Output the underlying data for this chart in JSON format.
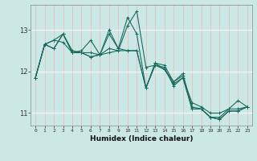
{
  "title": "",
  "xlabel": "Humidex (Indice chaleur)",
  "ylabel": "",
  "xlim": [
    -0.5,
    23.5
  ],
  "ylim": [
    10.7,
    13.6
  ],
  "yticks": [
    11,
    12,
    13
  ],
  "xticks": [
    0,
    1,
    2,
    3,
    4,
    5,
    6,
    7,
    8,
    9,
    10,
    11,
    12,
    13,
    14,
    15,
    16,
    17,
    18,
    19,
    20,
    21,
    22,
    23
  ],
  "bg_color": "#cce8e4",
  "line_color": "#1a6b5e",
  "grid_color_v": "#e8b8b8",
  "grid_color_h": "#ffffff",
  "lines": [
    [
      11.85,
      12.65,
      12.75,
      12.9,
      12.5,
      12.45,
      12.45,
      12.4,
      12.9,
      12.55,
      13.3,
      12.9,
      11.6,
      12.2,
      12.15,
      11.75,
      11.9,
      11.1,
      11.1,
      10.9,
      10.9,
      11.1,
      11.1,
      11.15
    ],
    [
      11.85,
      12.65,
      12.75,
      12.7,
      12.45,
      12.45,
      12.35,
      12.4,
      12.55,
      12.5,
      13.1,
      13.45,
      12.1,
      12.15,
      12.1,
      11.65,
      11.85,
      11.25,
      11.15,
      11.0,
      11.0,
      11.1,
      11.3,
      11.15
    ],
    [
      11.85,
      12.65,
      12.55,
      12.9,
      12.45,
      12.5,
      12.75,
      12.4,
      13.0,
      12.55,
      12.5,
      12.5,
      11.6,
      12.2,
      12.05,
      11.75,
      11.95,
      11.15,
      11.1,
      10.9,
      10.85,
      11.05,
      11.05,
      11.15
    ],
    [
      11.85,
      12.65,
      12.55,
      12.9,
      12.45,
      12.45,
      12.35,
      12.4,
      12.45,
      12.5,
      12.5,
      12.5,
      11.6,
      12.15,
      12.05,
      11.7,
      11.85,
      11.1,
      11.1,
      10.9,
      10.85,
      11.05,
      11.05,
      11.15
    ]
  ]
}
